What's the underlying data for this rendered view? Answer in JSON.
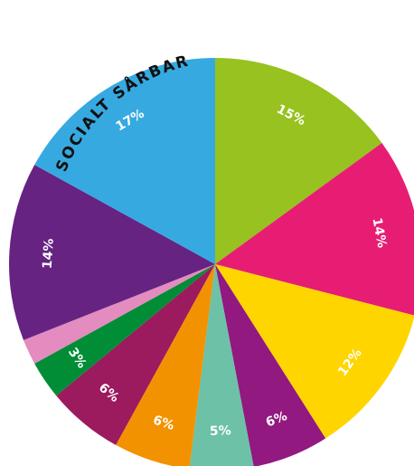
{
  "chart_data": {
    "type": "pie",
    "title": "SOCIALT SÅRBAR",
    "start_angle_deg": 0,
    "direction": "clockwise",
    "slices": [
      {
        "label": "15%",
        "value": 15,
        "color": "#97C21F"
      },
      {
        "label": "14%",
        "value": 14,
        "color": "#E71D73"
      },
      {
        "label": "12%",
        "value": 12,
        "color": "#FFD500"
      },
      {
        "label": "6%",
        "value": 6,
        "color": "#92197F"
      },
      {
        "label": "5%",
        "value": 5,
        "color": "#6CC1A6"
      },
      {
        "label": "6%",
        "value": 6,
        "color": "#F39200"
      },
      {
        "label": "6%",
        "value": 6,
        "color": "#9C1A5E"
      },
      {
        "label": "3%",
        "value": 3,
        "color": "#008D36"
      },
      {
        "label": "",
        "value": 2,
        "color": "#E48BBF"
      },
      {
        "label": "14%",
        "value": 14,
        "color": "#662382"
      },
      {
        "label": "17%",
        "value": 17,
        "color": "#36A9E1"
      }
    ]
  }
}
